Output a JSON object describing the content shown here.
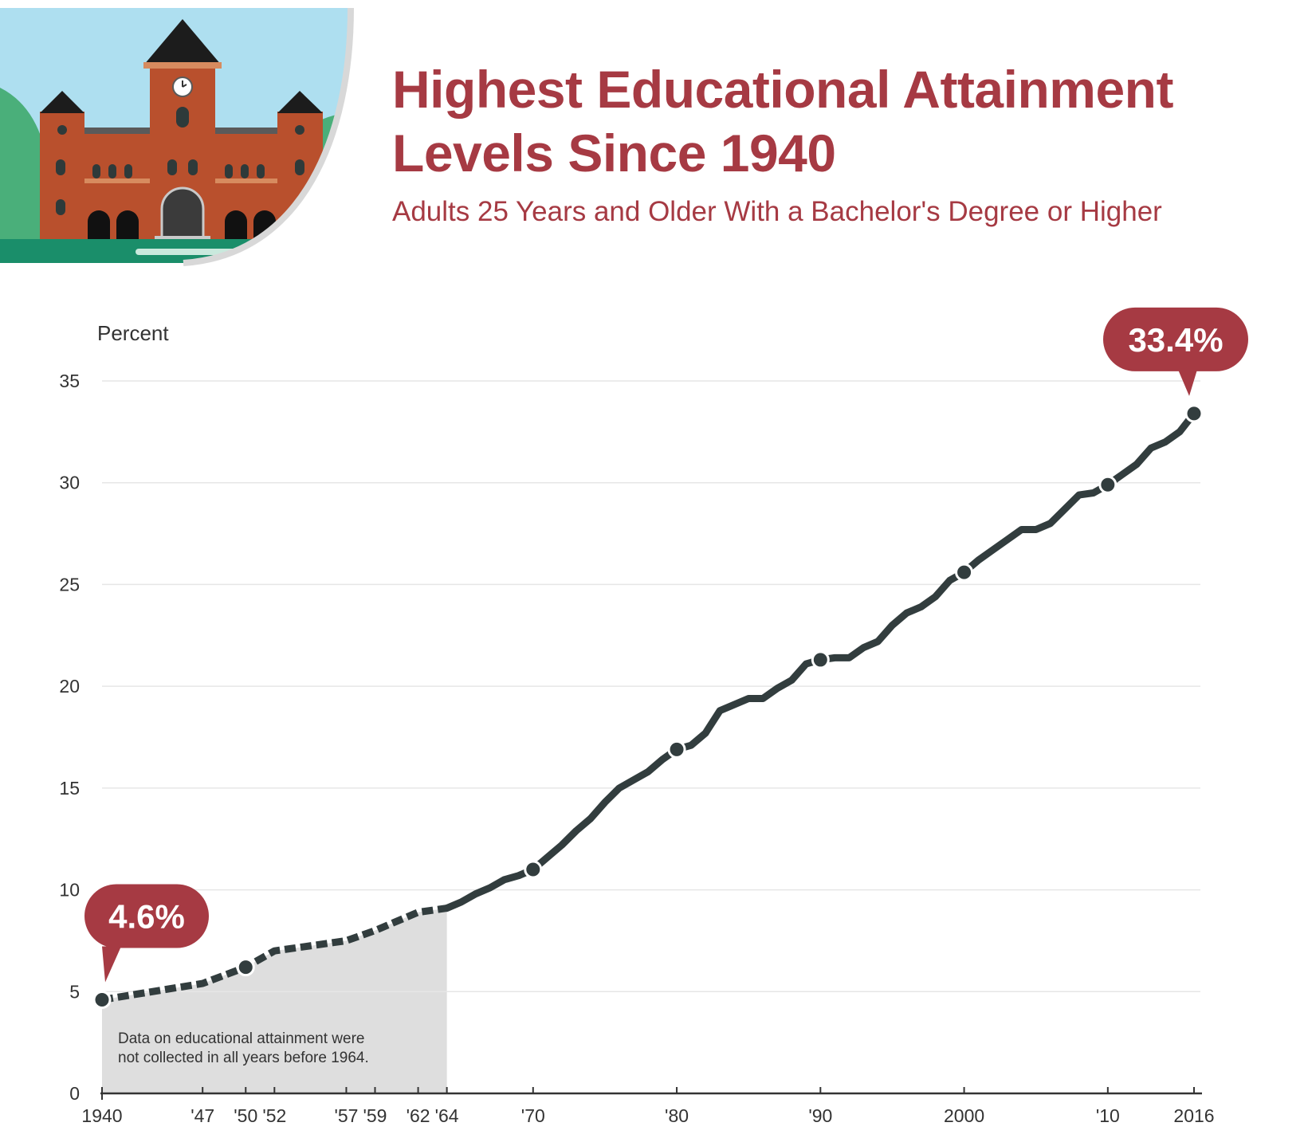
{
  "header": {
    "title_line1": "Highest Educational Attainment",
    "title_line2": "Levels Since 1940",
    "subtitle": "Adults 25 Years and Older With a Bachelor's Degree or Higher"
  },
  "colors": {
    "accent": "#a63a43",
    "line": "#323d3e",
    "shade": "#dedede",
    "grid": "#e6e6e6",
    "sky": "#aedff0",
    "brick": "#b9502d",
    "roof": "#1c1c1c",
    "grass": "#4aaf7a"
  },
  "chart_data": {
    "type": "line",
    "title": "Highest Educational Attainment Levels Since 1940",
    "subtitle": "Adults 25 Years and Older With a Bachelor's Degree or Higher",
    "ylabel": "Percent",
    "xlabel": "",
    "ylim": [
      0,
      35
    ],
    "xlim": [
      1940,
      2016
    ],
    "yticks": [
      0,
      5,
      10,
      15,
      20,
      25,
      30,
      35
    ],
    "xticks": [
      {
        "year": 1940,
        "label": "1940"
      },
      {
        "year": 1947,
        "label": "'47"
      },
      {
        "year": 1950,
        "label": "'50"
      },
      {
        "year": 1952,
        "label": "'52"
      },
      {
        "year": 1957,
        "label": "'57"
      },
      {
        "year": 1959,
        "label": "'59"
      },
      {
        "year": 1962,
        "label": "'62"
      },
      {
        "year": 1964,
        "label": "'64"
      },
      {
        "year": 1970,
        "label": "'70"
      },
      {
        "year": 1980,
        "label": "'80"
      },
      {
        "year": 1990,
        "label": "'90"
      },
      {
        "year": 2000,
        "label": "2000"
      },
      {
        "year": 2010,
        "label": "'10"
      },
      {
        "year": 2016,
        "label": "2016"
      }
    ],
    "grid": true,
    "shaded_region": {
      "from": 1940,
      "to": 1964
    },
    "note": [
      "Data on educational attainment were",
      "not collected in all years before 1964."
    ],
    "series": [
      {
        "segments": [
          {
            "style": "dashed",
            "x": [
              1940,
              1947,
              1950,
              1952,
              1957,
              1959,
              1962,
              1964
            ],
            "y": [
              4.6,
              5.4,
              6.2,
              7.0,
              7.5,
              8.0,
              8.9,
              9.1
            ]
          },
          {
            "style": "solid",
            "x": [
              1964,
              1965,
              1966,
              1967,
              1968,
              1969,
              1970,
              1971,
              1972,
              1973,
              1974,
              1975,
              1976,
              1977,
              1978,
              1979,
              1980,
              1981,
              1982,
              1983,
              1984,
              1985,
              1986,
              1987,
              1988,
              1989,
              1990,
              1991,
              1992,
              1993,
              1994,
              1995,
              1996,
              1997,
              1998,
              1999,
              2000,
              2001,
              2002,
              2003,
              2004,
              2005,
              2006,
              2007,
              2008,
              2009,
              2010,
              2011,
              2012,
              2013,
              2014,
              2015,
              2016
            ],
            "y": [
              9.1,
              9.4,
              9.8,
              10.1,
              10.5,
              10.7,
              11.0,
              11.6,
              12.2,
              12.9,
              13.5,
              14.3,
              15.0,
              15.4,
              15.8,
              16.4,
              16.9,
              17.1,
              17.7,
              18.8,
              19.1,
              19.4,
              19.4,
              19.9,
              20.3,
              21.1,
              21.3,
              21.4,
              21.4,
              21.9,
              22.2,
              23.0,
              23.6,
              23.9,
              24.4,
              25.2,
              25.6,
              26.2,
              26.7,
              27.2,
              27.7,
              27.7,
              28.0,
              28.7,
              29.4,
              29.5,
              29.9,
              30.4,
              30.9,
              31.7,
              32.0,
              32.5,
              33.4
            ]
          }
        ]
      }
    ],
    "markers": [
      {
        "x": 1940,
        "y": 4.6
      },
      {
        "x": 1950,
        "y": 6.2
      },
      {
        "x": 1970,
        "y": 11.0
      },
      {
        "x": 1980,
        "y": 16.9
      },
      {
        "x": 1990,
        "y": 21.3
      },
      {
        "x": 2000,
        "y": 25.6
      },
      {
        "x": 2010,
        "y": 29.9
      },
      {
        "x": 2016,
        "y": 33.4
      }
    ],
    "annotations": [
      {
        "x": 1940,
        "y": 4.6,
        "text": "4.6%",
        "placement": "above-right"
      },
      {
        "x": 2016,
        "y": 33.4,
        "text": "33.4%",
        "placement": "above-left"
      }
    ]
  }
}
